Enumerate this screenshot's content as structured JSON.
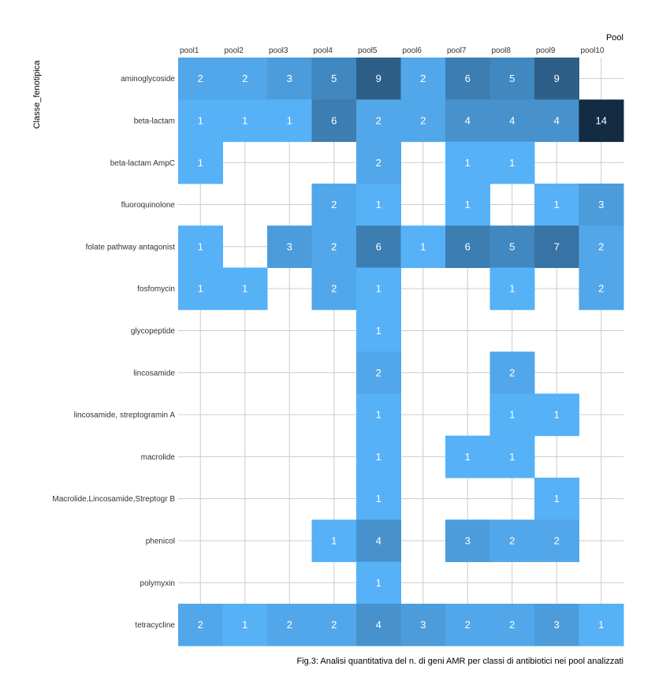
{
  "chart_data": {
    "type": "heatmap",
    "title": "",
    "xlabel": "Pool",
    "ylabel": "Classe_fenotipica",
    "caption": "Fig.3: Analisi quantitativa del n. di geni AMR per classi di antibiotici nei pool analizzati",
    "x_axis_position": "top",
    "grid": true,
    "legend": "none",
    "colors": {
      "low": "#56b1f7",
      "high": "#132b43",
      "grid": "#cccccc",
      "label": "#ffffff"
    },
    "x": [
      "pool1",
      "pool2",
      "pool3",
      "pool4",
      "pool5",
      "pool6",
      "pool7",
      "pool8",
      "pool9",
      "pool10"
    ],
    "y": [
      "aminoglycoside",
      "beta-lactam",
      "beta-lactam AmpC",
      "fluoroquinolone",
      "folate pathway antagonist",
      "fosfomycin",
      "glycopeptide",
      "lincosamide",
      "lincosamide, streptogramin A",
      "macrolide",
      "Macrolide,Lincosamide,Streptogr B",
      "phenicol",
      "polymyxin",
      "tetracycline"
    ],
    "values": [
      [
        2,
        2,
        3,
        5,
        9,
        2,
        6,
        5,
        9,
        null
      ],
      [
        1,
        1,
        1,
        6,
        2,
        2,
        4,
        4,
        4,
        14
      ],
      [
        1,
        null,
        null,
        null,
        2,
        null,
        1,
        1,
        null,
        null
      ],
      [
        null,
        null,
        null,
        2,
        1,
        null,
        1,
        null,
        1,
        3
      ],
      [
        1,
        null,
        3,
        2,
        6,
        1,
        6,
        5,
        7,
        2
      ],
      [
        1,
        1,
        null,
        2,
        1,
        null,
        null,
        1,
        null,
        2
      ],
      [
        null,
        null,
        null,
        null,
        1,
        null,
        null,
        null,
        null,
        null
      ],
      [
        null,
        null,
        null,
        null,
        2,
        null,
        null,
        2,
        null,
        null
      ],
      [
        null,
        null,
        null,
        null,
        1,
        null,
        null,
        1,
        1,
        null
      ],
      [
        null,
        null,
        null,
        null,
        1,
        null,
        1,
        1,
        null,
        null
      ],
      [
        null,
        null,
        null,
        null,
        1,
        null,
        null,
        null,
        1,
        null
      ],
      [
        null,
        null,
        null,
        1,
        4,
        null,
        3,
        2,
        2,
        null
      ],
      [
        null,
        null,
        null,
        null,
        1,
        null,
        null,
        null,
        null,
        null
      ],
      [
        2,
        1,
        2,
        2,
        4,
        3,
        2,
        2,
        3,
        1
      ]
    ],
    "value_range": [
      1,
      14
    ]
  }
}
